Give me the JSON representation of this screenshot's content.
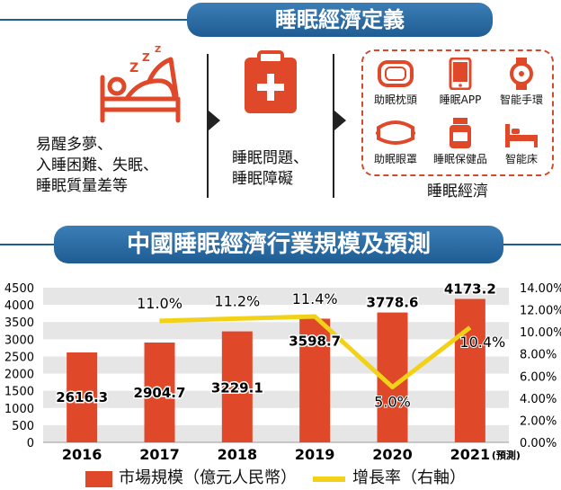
{
  "header": {
    "title": "睡眠經濟定義"
  },
  "definition": {
    "symptoms": [
      "易醒多夢、",
      "入睡困難、失眠、",
      "睡眠質量差等"
    ],
    "problems": [
      "睡眠問題、",
      "睡眠障礙"
    ],
    "economy_label": "睡眠經濟",
    "products": [
      {
        "name": "助眠枕頭",
        "icon": "pillow-icon"
      },
      {
        "name": "睡眠APP",
        "icon": "phone-icon"
      },
      {
        "name": "智能手環",
        "icon": "smartwatch-icon"
      },
      {
        "name": "助眠眼罩",
        "icon": "eye-mask-icon"
      },
      {
        "name": "睡眠保健品",
        "icon": "supplement-bottle-icon"
      },
      {
        "name": "智能床",
        "icon": "bed-icon"
      }
    ]
  },
  "section2": {
    "title": "中國睡眠經濟行業規模及預測"
  },
  "colors": {
    "bar": "#e0482a",
    "line": "#f2d219",
    "banner": "#1f5c94",
    "band": "#e6e6e6"
  },
  "chart_data": {
    "type": "bar",
    "categories": [
      "2016",
      "2017",
      "2018",
      "2019",
      "2020",
      "2021"
    ],
    "forecast_note": "(預測)",
    "series": [
      {
        "name": "市場規模（億元人民幣）",
        "type": "bar",
        "axis": "left",
        "values": [
          2616.3,
          2904.7,
          3229.1,
          3598.7,
          3778.6,
          4173.2
        ],
        "labels": [
          "2616.3",
          "2904.7",
          "3229.1",
          "3598.7",
          "3778.6",
          "4173.2"
        ]
      },
      {
        "name": "增長率（右軸）",
        "type": "line",
        "axis": "right",
        "values": [
          null,
          11.0,
          11.2,
          11.4,
          5.0,
          10.4
        ],
        "labels": [
          "",
          "11.0%",
          "11.2%",
          "11.4%",
          "5.0%",
          "10.4%"
        ]
      }
    ],
    "y_left": {
      "lim": [
        0,
        4500
      ],
      "ticks": [
        "0",
        "500",
        "1000",
        "1500",
        "2000",
        "2500",
        "3000",
        "3500",
        "4000",
        "4500"
      ]
    },
    "y_right": {
      "lim": [
        0,
        14
      ],
      "ticks": [
        "0.00%",
        "2.00%",
        "4.00%",
        "6.00%",
        "8.00%",
        "10.00%",
        "12.00%",
        "14.00%"
      ]
    },
    "grid": "horizontal bands",
    "legend_position": "bottom"
  }
}
